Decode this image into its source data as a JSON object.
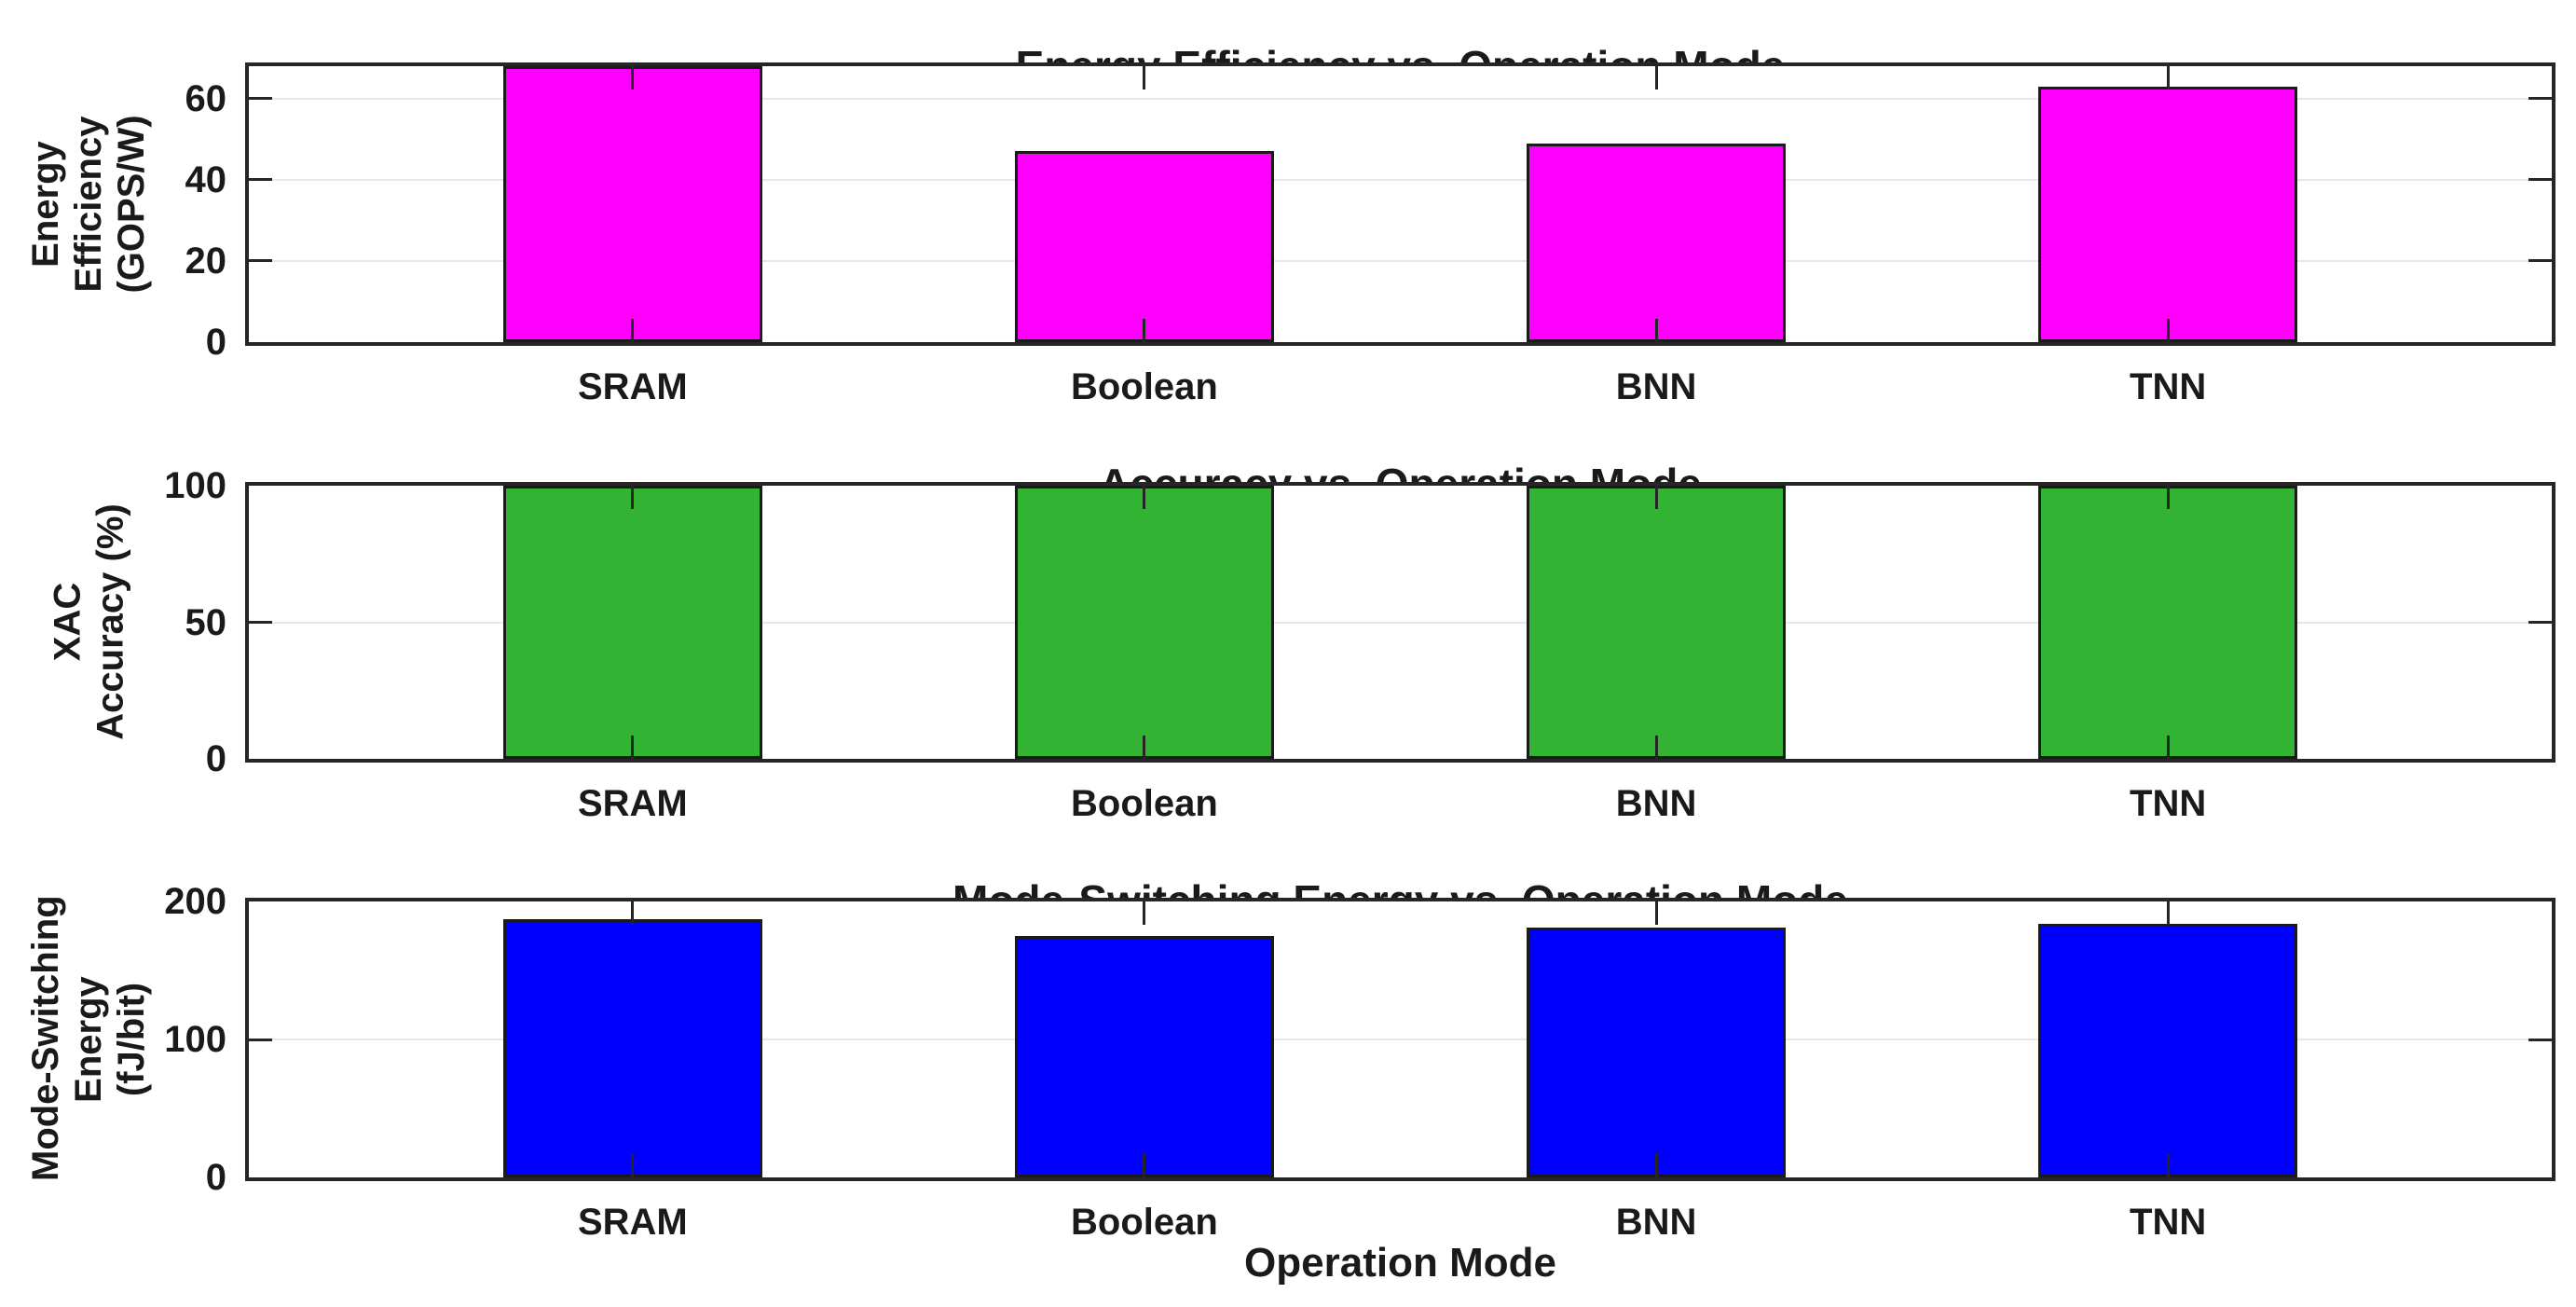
{
  "figure": {
    "background": "#FFFFFF",
    "axis_color": "#262626",
    "grid_color": "#E8E8E8",
    "text_color": "#1A1A1A"
  },
  "xlabel": "Operation Mode",
  "chart_data": [
    {
      "type": "bar",
      "title": "Energy Efficiency vs. Operation Mode",
      "ylabel": "Energy Efficiency (GOPS/W)",
      "ylabel_lines": [
        "Energy",
        "Efficiency",
        "(GOPS/W)"
      ],
      "categories": [
        "SRAM",
        "Boolean",
        "BNN",
        "TNN"
      ],
      "values": [
        68,
        47,
        49,
        63
      ],
      "bar_color": "#FF00FF",
      "yticks": [
        0,
        20,
        40,
        60
      ],
      "ylim": [
        0,
        68
      ],
      "grid": "on",
      "legend": "none"
    },
    {
      "type": "bar",
      "title": "Accuracy vs. Operation Mode",
      "ylabel": "XAC Accuracy (%)",
      "ylabel_lines": [
        "XAC",
        "Accuracy (%)"
      ],
      "categories": [
        "SRAM",
        "Boolean",
        "BNN",
        "TNN"
      ],
      "values": [
        100,
        100,
        100,
        100
      ],
      "bar_color": "#33B333",
      "yticks": [
        0,
        50,
        100
      ],
      "ylim": [
        0,
        100
      ],
      "grid": "on",
      "legend": "none"
    },
    {
      "type": "bar",
      "title": "Mode-Switching Energy vs. Operation Mode",
      "ylabel": "Mode-Switching Energy (fJ/bit)",
      "ylabel_lines": [
        "Mode-Switching",
        "Energy",
        "(fJ/bit)"
      ],
      "categories": [
        "SRAM",
        "Boolean",
        "BNN",
        "TNN"
      ],
      "values": [
        187,
        175,
        181,
        184
      ],
      "bar_color": "#0000FF",
      "yticks": [
        0,
        100,
        200
      ],
      "ylim": [
        0,
        200
      ],
      "grid": "on",
      "legend": "none"
    }
  ]
}
